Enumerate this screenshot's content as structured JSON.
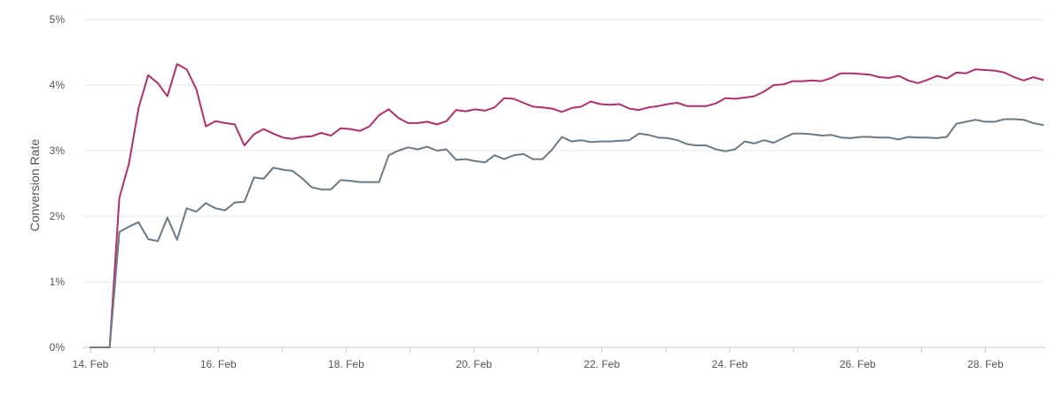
{
  "chart_data": {
    "type": "line",
    "title": "",
    "xlabel": "",
    "ylabel": "Conversion Rate",
    "ylim": [
      0,
      5
    ],
    "y_unit": "%",
    "y_ticks": [
      "0%",
      "1%",
      "2%",
      "3%",
      "4%",
      "5%"
    ],
    "x_ticks": [
      "14. Feb",
      "16. Feb",
      "18. Feb",
      "20. Feb",
      "22. Feb",
      "24. Feb",
      "26. Feb",
      "28. Feb"
    ],
    "x_start": "14. Feb",
    "x_end": "28.9 Feb",
    "grid": "horizontal",
    "legend": "none",
    "series": [
      {
        "color": "#b0306f",
        "values": [
          0.0,
          0.0,
          0.0,
          2.28,
          2.8,
          3.65,
          4.15,
          4.03,
          3.83,
          4.32,
          4.24,
          3.94,
          3.37,
          3.45,
          3.42,
          3.4,
          3.08,
          3.25,
          3.33,
          3.26,
          3.2,
          3.18,
          3.21,
          3.22,
          3.27,
          3.23,
          3.34,
          3.33,
          3.3,
          3.37,
          3.54,
          3.63,
          3.5,
          3.42,
          3.42,
          3.44,
          3.4,
          3.45,
          3.62,
          3.6,
          3.63,
          3.61,
          3.66,
          3.8,
          3.79,
          3.73,
          3.67,
          3.66,
          3.64,
          3.59,
          3.65,
          3.67,
          3.75,
          3.71,
          3.7,
          3.71,
          3.64,
          3.62,
          3.66,
          3.68,
          3.71,
          3.73,
          3.68,
          3.68,
          3.68,
          3.72,
          3.8,
          3.79,
          3.81,
          3.83,
          3.9,
          4.0,
          4.01,
          4.06,
          4.06,
          4.07,
          4.06,
          4.11,
          4.18,
          4.18,
          4.17,
          4.16,
          4.12,
          4.11,
          4.14,
          4.07,
          4.03,
          4.08,
          4.14,
          4.1,
          4.19,
          4.18,
          4.24,
          4.23,
          4.22,
          4.19,
          4.12,
          4.07,
          4.12,
          4.08
        ]
      },
      {
        "color": "#6b7a86",
        "values": [
          0.0,
          0.0,
          0.0,
          1.76,
          1.84,
          1.91,
          1.65,
          1.62,
          1.98,
          1.64,
          2.12,
          2.07,
          2.2,
          2.12,
          2.09,
          2.21,
          2.22,
          2.59,
          2.57,
          2.74,
          2.71,
          2.69,
          2.58,
          2.44,
          2.41,
          2.41,
          2.55,
          2.54,
          2.52,
          2.52,
          2.52,
          2.93,
          3.0,
          3.05,
          3.02,
          3.06,
          3.0,
          3.02,
          2.86,
          2.87,
          2.84,
          2.82,
          2.93,
          2.87,
          2.93,
          2.95,
          2.87,
          2.87,
          3.02,
          3.21,
          3.14,
          3.16,
          3.13,
          3.14,
          3.14,
          3.15,
          3.16,
          3.26,
          3.24,
          3.2,
          3.19,
          3.16,
          3.1,
          3.08,
          3.08,
          3.02,
          2.99,
          3.02,
          3.14,
          3.11,
          3.16,
          3.12,
          3.19,
          3.26,
          3.26,
          3.25,
          3.23,
          3.24,
          3.2,
          3.19,
          3.21,
          3.21,
          3.2,
          3.2,
          3.17,
          3.21,
          3.2,
          3.2,
          3.19,
          3.21,
          3.41,
          3.44,
          3.47,
          3.44,
          3.44,
          3.48,
          3.48,
          3.47,
          3.42,
          3.39
        ]
      }
    ]
  }
}
